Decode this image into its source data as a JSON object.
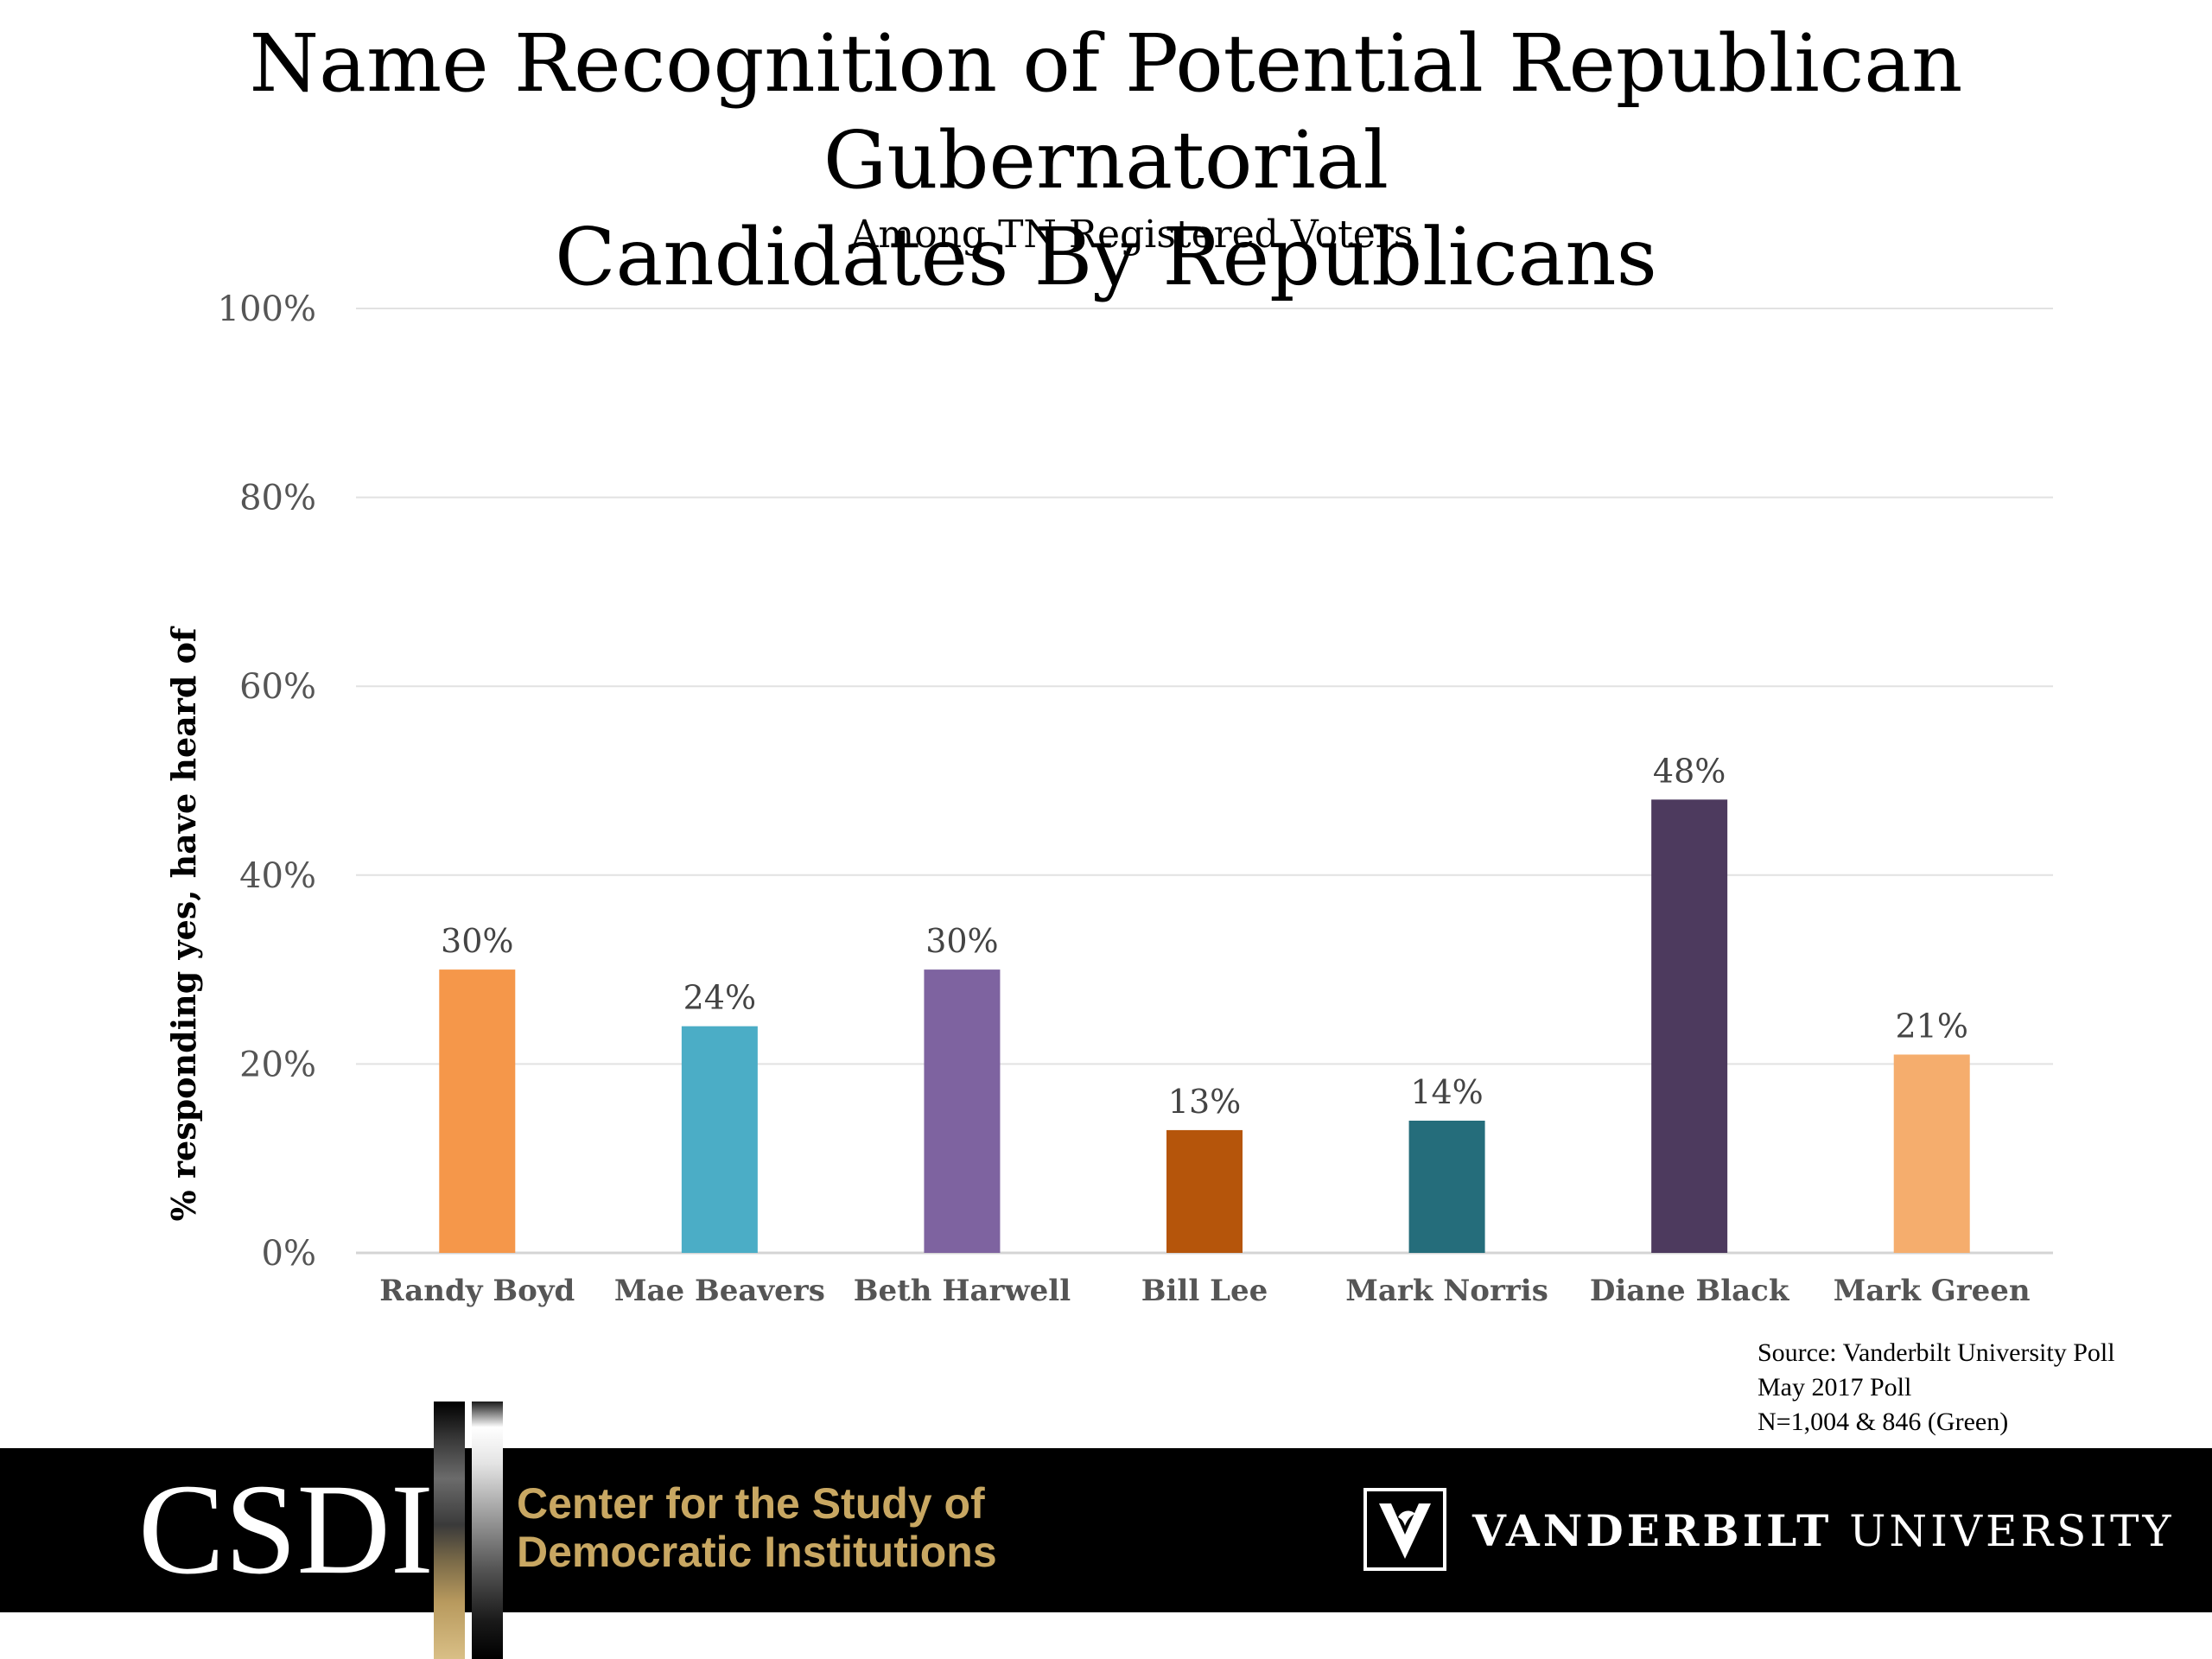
{
  "chart_data": {
    "type": "bar",
    "title_line1": "Name Recognition of Potential Republican Gubernatorial",
    "title_line2": "Candidates By Republicans",
    "subtitle": "Among TN Registered Voters",
    "ylabel": "% responding yes, have heard of",
    "xlabel": "",
    "ylim": [
      0,
      100
    ],
    "yticks": [
      0,
      20,
      40,
      60,
      80,
      100
    ],
    "ytick_labels": [
      "0%",
      "20%",
      "40%",
      "60%",
      "80%",
      "100%"
    ],
    "grid": true,
    "categories": [
      "Randy Boyd",
      "Mae Beavers",
      "Beth Harwell",
      "Bill Lee",
      "Mark Norris",
      "Diane Black",
      "Mark Green"
    ],
    "values": [
      30,
      24,
      30,
      13,
      14,
      48,
      21
    ],
    "value_labels": [
      "30%",
      "24%",
      "30%",
      "13%",
      "14%",
      "48%",
      "21%"
    ],
    "colors": [
      "#F5974A",
      "#4BADC6",
      "#7E63A0",
      "#B5550B",
      "#256D7B",
      "#4D3A5E",
      "#F5AD6D"
    ]
  },
  "source": {
    "line1": "Source: Vanderbilt University Poll",
    "line2": "May 2017 Poll",
    "line3": "N=1,004 & 846 (Green)"
  },
  "footer": {
    "csdi": "CSDI",
    "center_line1": "Center for the Study of",
    "center_line2": "Democratic Institutions",
    "vu_bold": "VANDERBILT",
    "vu_light": " UNIVERSITY",
    "vu_logo_letter": "V"
  }
}
